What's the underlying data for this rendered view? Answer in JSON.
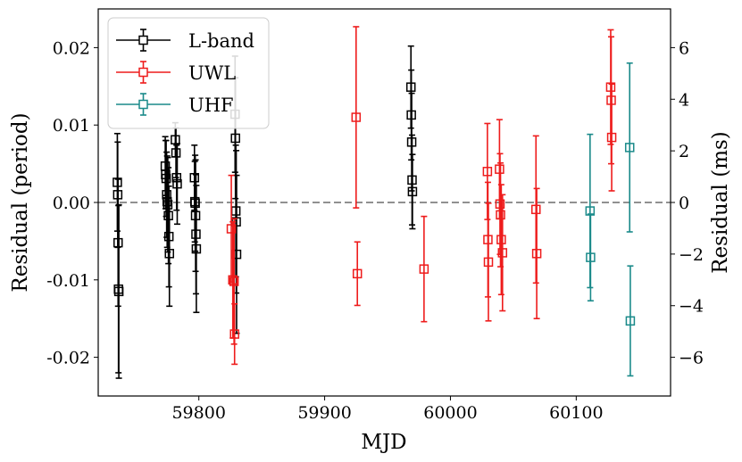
{
  "chart_data": {
    "type": "scatter",
    "title": "",
    "xlabel": "MJD",
    "ylabel": "Residual (period)",
    "y2label": "Residual (ms)",
    "xlim": [
      59720,
      60175
    ],
    "ylim": [
      -0.025,
      0.025
    ],
    "y2lim": [
      -7.5,
      7.5
    ],
    "xticks": [
      59800,
      59900,
      60000,
      60100
    ],
    "xtick_labels": [
      "59800",
      "59900",
      "60000",
      "60100"
    ],
    "yticks": [
      0.02,
      0.01,
      0.0,
      -0.01,
      -0.02
    ],
    "ytick_labels": [
      "0.02",
      "0.01",
      "0.00",
      "-0.01",
      "-0.02"
    ],
    "y2ticks": [
      6,
      4,
      2,
      0,
      -2,
      -4,
      -6
    ],
    "y2tick_labels": [
      "6",
      "4",
      "2",
      "0",
      "−2",
      "−4",
      "−6"
    ],
    "zero_line": {
      "y": 0,
      "style": "dashed",
      "color": "#808080"
    },
    "legend_position": "top-left",
    "series": [
      {
        "name": "L-band",
        "color": "#000000",
        "x": [
          59735.2,
          59735.5,
          59735.8,
          59736.1,
          59736.4,
          59773.3,
          59773.6,
          59774.0,
          59774.4,
          59774.8,
          59775.3,
          59775.8,
          59776.2,
          59776.6,
          59781.3,
          59781.8,
          59782.3,
          59782.8,
          59796.5,
          59796.8,
          59797.1,
          59797.4,
          59797.7,
          59798.0,
          59828.8,
          59829.1,
          59829.4,
          59829.7,
          59830.0,
          59968.6,
          59968.9,
          59969.2,
          59969.5,
          59969.8
        ],
        "y": [
          0.0026,
          0.001,
          -0.0052,
          -0.0112,
          -0.0115,
          0.0047,
          0.0036,
          0.0031,
          0.001,
          0.0001,
          -0.0003,
          -0.0017,
          -0.0044,
          -0.0066,
          0.0081,
          0.0064,
          0.0032,
          0.0024,
          0.0032,
          0.0001,
          -0.0001,
          -0.0017,
          -0.0041,
          -0.006,
          0.0114,
          0.0083,
          -0.0011,
          -0.0025,
          -0.0067,
          0.0149,
          0.0113,
          0.0078,
          0.0029,
          0.0014
        ],
        "yerr": [
          0.0063,
          0.0068,
          0.0082,
          0.0108,
          0.0112,
          0.0038,
          0.0044,
          0.0049,
          0.0055,
          0.0059,
          0.0061,
          0.0062,
          0.0065,
          0.0068,
          0.0022,
          0.0032,
          0.0042,
          0.0052,
          0.0042,
          0.0052,
          0.0062,
          0.0072,
          0.0077,
          0.0082,
          0.0075,
          0.0078,
          0.0085,
          0.0092,
          0.0102,
          0.0053,
          0.0058,
          0.0063,
          0.0058,
          0.0048
        ]
      },
      {
        "name": "UWL",
        "color": "#ee1c1c",
        "x": [
          59825.8,
          59827.0,
          59828.0,
          59828.4,
          59925.0,
          59926.0,
          59979.0,
          60029.4,
          60029.8,
          60030.2,
          60039.0,
          60039.4,
          60039.8,
          60040.4,
          60041.4,
          60068.0,
          60068.6,
          60127.4,
          60127.8,
          60128.2
        ],
        "y": [
          -0.0034,
          -0.01,
          -0.0102,
          -0.017,
          0.011,
          -0.0092,
          -0.0086,
          0.004,
          -0.0048,
          -0.0077,
          0.0043,
          -0.0002,
          -0.0016,
          -0.0048,
          -0.0065,
          -0.0009,
          -0.0066,
          0.0149,
          0.0132,
          0.0084
        ],
        "yerr": [
          0.0069,
          0.0075,
          0.0081,
          0.0039,
          0.0117,
          0.0041,
          0.0068,
          0.0062,
          0.0074,
          0.0076,
          0.0064,
          0.0065,
          0.0067,
          0.0071,
          0.0075,
          0.0095,
          0.0084,
          0.0074,
          0.0082,
          0.0069
        ]
      },
      {
        "name": "UHF",
        "color": "#1a8a8a",
        "x": [
          60111.0,
          60111.4,
          60142.5,
          60143.0
        ],
        "y": [
          -0.0011,
          -0.0071,
          0.0071,
          -0.0153
        ],
        "yerr": [
          0.0099,
          0.0056,
          0.0109,
          0.0071
        ]
      }
    ]
  }
}
